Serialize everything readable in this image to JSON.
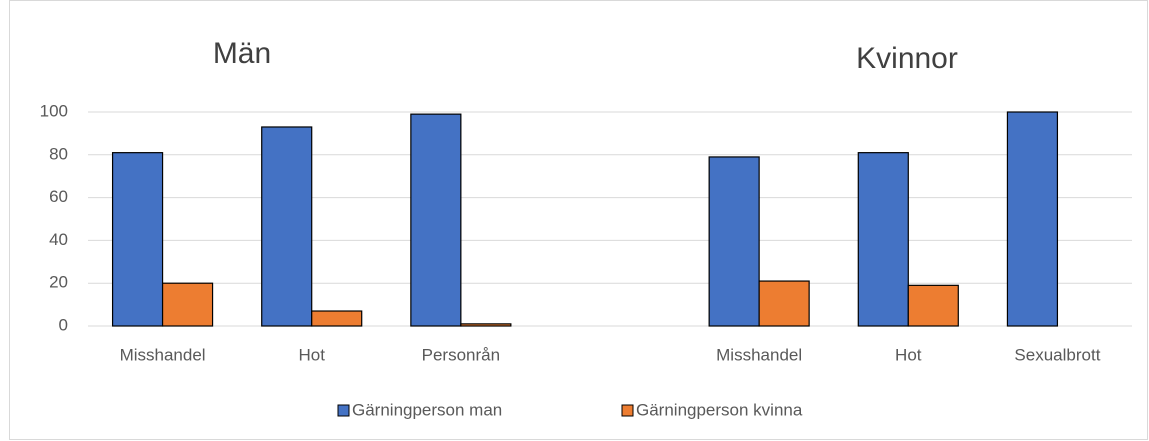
{
  "chart_data": {
    "type": "bar",
    "annotations": [
      "Män",
      "Kvinnor"
    ],
    "categories": [
      "Misshandel",
      "Hot",
      "Personrån",
      null,
      "Misshandel",
      "Hot",
      "Sexualbrott"
    ],
    "series": [
      {
        "name": "Gärningperson man",
        "color": "#4472c4",
        "values": [
          81,
          93,
          99,
          null,
          79,
          81,
          100
        ]
      },
      {
        "name": "Gärningperson kvinna",
        "color": "#ed7d31",
        "values": [
          20,
          7,
          1,
          null,
          21,
          19,
          0
        ]
      }
    ],
    "ylim": [
      0,
      100
    ],
    "yticks": [
      0,
      20,
      40,
      60,
      80,
      100
    ],
    "grid": true,
    "legend": "bottom"
  }
}
